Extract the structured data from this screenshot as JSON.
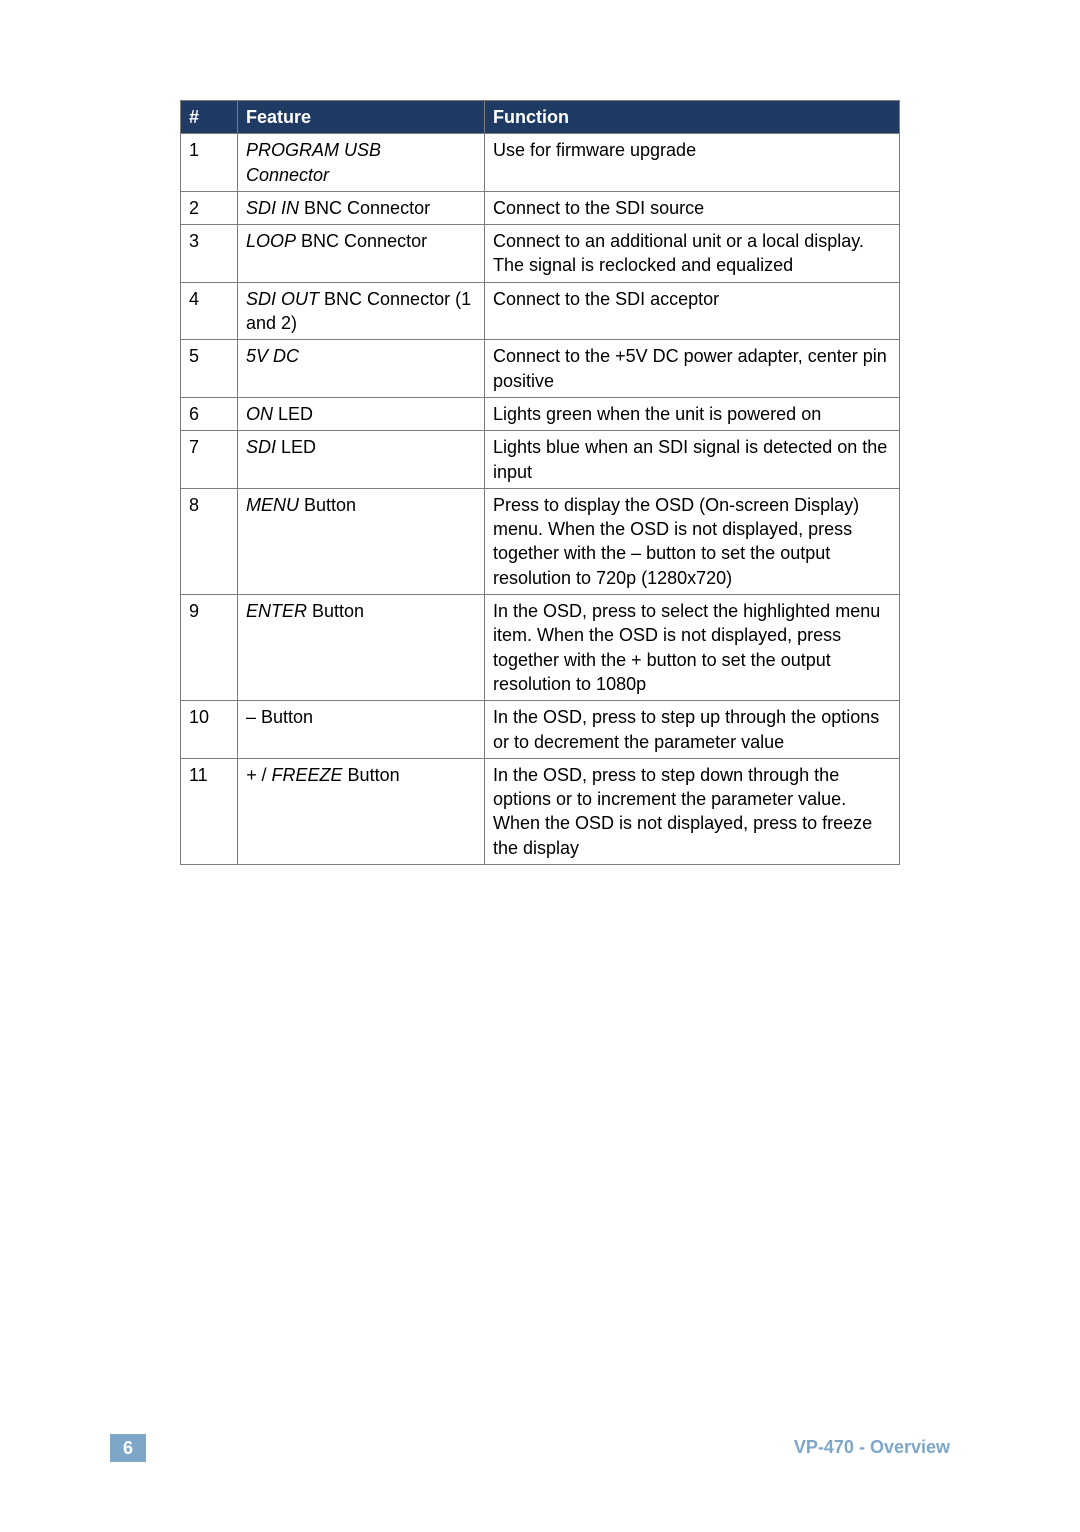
{
  "table": {
    "header_bg": "#1f3b64",
    "header_fg": "#ffffff",
    "border_color": "#7a7a7a",
    "columns": [
      "#",
      "Feature",
      "Function"
    ],
    "rows": [
      {
        "num": "1",
        "feature": [
          {
            "text": "PROGRAM USB",
            "italic": true
          },
          {
            "text": " ",
            "italic": false
          },
          {
            "text": "Connector",
            "italic": true,
            "break_before": true
          }
        ],
        "function": "Use for firmware upgrade"
      },
      {
        "num": "2",
        "feature": [
          {
            "text": "SDI IN",
            "italic": true
          },
          {
            "text": " BNC Connector",
            "italic": false
          }
        ],
        "function": "Connect to the SDI source"
      },
      {
        "num": "3",
        "feature": [
          {
            "text": "LOOP",
            "italic": true
          },
          {
            "text": " BNC Connector",
            "italic": false
          }
        ],
        "function": "Connect to an additional unit or a local display. The signal is reclocked and equalized"
      },
      {
        "num": "4",
        "feature": [
          {
            "text": "SDI OUT",
            "italic": true
          },
          {
            "text": " BNC Connector (1 and 2)",
            "italic": false
          }
        ],
        "function": "Connect to the SDI acceptor"
      },
      {
        "num": "5",
        "feature": [
          {
            "text": "5V DC",
            "italic": true
          }
        ],
        "function": "Connect to the +5V DC power adapter, center pin positive"
      },
      {
        "num": "6",
        "feature": [
          {
            "text": "ON",
            "italic": true
          },
          {
            "text": " LED",
            "italic": false
          }
        ],
        "function": "Lights green when the unit is powered on"
      },
      {
        "num": "7",
        "feature": [
          {
            "text": "SDI",
            "italic": true
          },
          {
            "text": " LED",
            "italic": false
          }
        ],
        "function": "Lights blue when an SDI signal is detected on the input"
      },
      {
        "num": "8",
        "feature": [
          {
            "text": "MENU",
            "italic": true
          },
          {
            "text": " Button",
            "italic": false
          }
        ],
        "function": "Press to display the OSD (On-screen Display) menu. When the OSD is not displayed, press together with the – button to set the output resolution to 720p (1280x720)"
      },
      {
        "num": "9",
        "feature": [
          {
            "text": "ENTER",
            "italic": true
          },
          {
            "text": " Button",
            "italic": false
          }
        ],
        "function": "In the OSD, press to select the highlighted menu item. When the OSD is not displayed, press together with the + button to set the output resolution to 1080p"
      },
      {
        "num": "10",
        "feature": [
          {
            "text": "– Button",
            "italic": false
          }
        ],
        "function": "In the OSD, press to step up through the options or to decrement the parameter value"
      },
      {
        "num": "11",
        "feature": [
          {
            "text": "+",
            "italic": true
          },
          {
            "text": " / ",
            "italic": false
          },
          {
            "text": "FREEZE",
            "italic": true
          },
          {
            "text": " Button",
            "italic": false
          }
        ],
        "function_parts": [
          "In the OSD, press to step down through the options or to increment the parameter value.",
          "When the OSD is not displayed, press to freeze the display"
        ]
      }
    ]
  },
  "footer": {
    "page_number": "6",
    "page_number_bg": "#7ea6c9",
    "page_number_fg": "#ffffff",
    "text": "VP-470 - Overview",
    "text_color": "#7ea6c9"
  }
}
